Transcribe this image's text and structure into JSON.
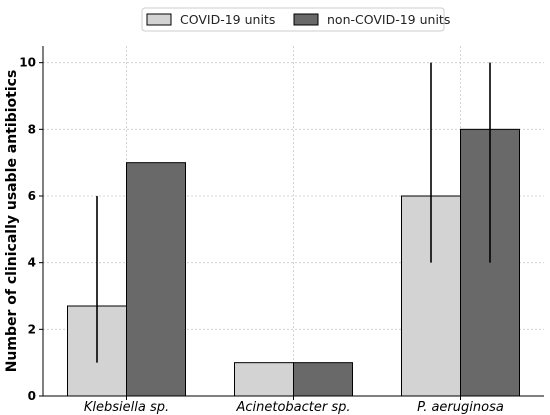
{
  "chart_data": {
    "type": "bar",
    "categories": [
      "Klebsiella sp.",
      "Acinetobacter sp.",
      "P.  aeruginosa"
    ],
    "ylabel": "Number of clinically usable antibiotics",
    "xlabel": "",
    "ylim": [
      0,
      10.5
    ],
    "yticks": [
      0,
      2,
      4,
      6,
      8,
      10
    ],
    "grid": true,
    "legend_position": "top-center",
    "series": [
      {
        "name": "COVID-19 units",
        "color": "#d3d3d3",
        "values": [
          2.7,
          1,
          6
        ],
        "errors": [
          [
            1,
            6
          ],
          null,
          [
            4,
            10
          ]
        ]
      },
      {
        "name": "non-COVID-19 units",
        "color": "#696969",
        "values": [
          7,
          1,
          8
        ],
        "errors": [
          null,
          null,
          [
            4,
            10
          ]
        ]
      }
    ]
  }
}
